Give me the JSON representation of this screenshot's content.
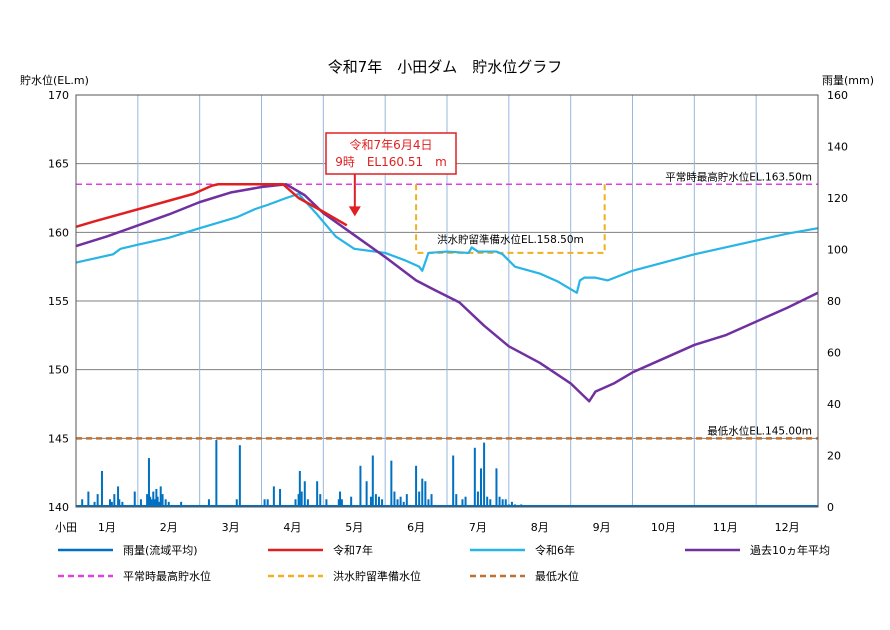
{
  "chart_data": {
    "type": "line",
    "title": "令和7年　小田ダム　貯水位グラフ",
    "y_left_label": "貯水位(EL.m)",
    "y_right_label": "雨量(mm)",
    "ylim_left": [
      140,
      170
    ],
    "ylim_right": [
      0,
      160
    ],
    "y_left_ticks": [
      140,
      145,
      150,
      155,
      160,
      165,
      170
    ],
    "y_right_ticks": [
      0,
      20,
      40,
      60,
      80,
      100,
      120,
      140,
      160
    ],
    "x_prefix": "小田",
    "months": [
      "1月",
      "2月",
      "3月",
      "4月",
      "5月",
      "6月",
      "7月",
      "8月",
      "9月",
      "10月",
      "11月",
      "12月"
    ],
    "xlim": [
      1,
      13
    ],
    "grid": true,
    "legend": [
      {
        "key": "rain",
        "label": "雨量(流域平均)",
        "color": "#0070c0",
        "dash": false
      },
      {
        "key": "r7",
        "label": "令和7年",
        "color": "#e02020",
        "dash": false
      },
      {
        "key": "r6",
        "label": "令和6年",
        "color": "#27b4e6",
        "dash": false
      },
      {
        "key": "avg",
        "label": "過去10ヵ年平均",
        "color": "#7030a0",
        "dash": false
      },
      {
        "key": "normal_max",
        "label": "平常時最高貯水位",
        "color": "#e040e0",
        "dash": true
      },
      {
        "key": "flood",
        "label": "洪水貯留準備水位",
        "color": "#f0b020",
        "dash": true
      },
      {
        "key": "min",
        "label": "最低水位",
        "color": "#c07030",
        "dash": true
      }
    ],
    "reference_lines": [
      {
        "key": "normal_max",
        "label": "平常時最高貯水位EL.163.50m",
        "y": 163.5,
        "color": "#e040e0"
      },
      {
        "key": "flood",
        "label": "洪水貯留準備水位EL.158.50m",
        "y": 158.5,
        "x_start": 6.5,
        "x_end": 9.55,
        "upper": 163.5,
        "color": "#f0b020"
      },
      {
        "key": "min",
        "label": "最低水位EL.145.00m",
        "y": 145.0,
        "color": "#c07030"
      }
    ],
    "series": [
      {
        "key": "r7",
        "name": "令和7年",
        "color": "#e02020",
        "x": [
          1.0,
          1.3,
          1.7,
          2.1,
          2.5,
          2.9,
          3.2,
          3.3,
          3.8,
          4.35,
          4.6,
          5.0,
          5.38
        ],
        "y": [
          160.4,
          160.8,
          161.3,
          161.8,
          162.3,
          162.8,
          163.4,
          163.5,
          163.5,
          163.5,
          162.5,
          161.5,
          160.51
        ]
      },
      {
        "key": "r6",
        "name": "令和6年",
        "color": "#27b4e6",
        "x": [
          1.0,
          1.3,
          1.6,
          1.72,
          2.0,
          2.5,
          3.0,
          3.3,
          3.6,
          3.9,
          4.1,
          4.4,
          4.6,
          4.9,
          5.2,
          5.5,
          6.0,
          6.3,
          6.45,
          6.55,
          6.6,
          6.7,
          7.0,
          7.35,
          7.4,
          7.5,
          7.8,
          7.9,
          8.1,
          8.5,
          8.8,
          9.1,
          9.15,
          9.22,
          9.4,
          9.6,
          10.0,
          10.5,
          11.0,
          11.5,
          12.0,
          12.5,
          13.0
        ],
        "y": [
          157.8,
          158.1,
          158.4,
          158.8,
          159.1,
          159.6,
          160.3,
          160.7,
          161.1,
          161.7,
          162.0,
          162.5,
          162.8,
          161.3,
          159.7,
          158.8,
          158.5,
          158.0,
          157.7,
          157.5,
          157.2,
          158.5,
          158.6,
          158.5,
          158.9,
          158.6,
          158.6,
          158.4,
          157.5,
          157.0,
          156.4,
          155.6,
          156.5,
          156.7,
          156.7,
          156.5,
          157.2,
          157.8,
          158.4,
          158.9,
          159.4,
          159.9,
          160.3
        ]
      },
      {
        "key": "avg",
        "name": "過去10ヵ年平均",
        "color": "#7030a0",
        "x": [
          1.0,
          1.5,
          2.0,
          2.5,
          3.0,
          3.5,
          4.0,
          4.4,
          4.7,
          5.0,
          5.5,
          6.0,
          6.5,
          6.8,
          7.2,
          7.6,
          8.0,
          8.5,
          9.0,
          9.3,
          9.4,
          9.7,
          10.0,
          10.5,
          11.0,
          11.5,
          12.0,
          12.5,
          13.0
        ],
        "y": [
          159.0,
          159.7,
          160.5,
          161.3,
          162.2,
          162.9,
          163.3,
          163.5,
          162.7,
          161.4,
          159.8,
          158.2,
          156.5,
          155.8,
          154.9,
          153.2,
          151.7,
          150.5,
          149.0,
          147.7,
          148.4,
          149.0,
          149.8,
          150.8,
          151.8,
          152.5,
          153.5,
          154.5,
          155.6
        ]
      }
    ],
    "rain": {
      "x": [
        1.1,
        1.2,
        1.3,
        1.35,
        1.42,
        1.55,
        1.58,
        1.62,
        1.68,
        1.7,
        1.75,
        1.95,
        2.05,
        2.15,
        2.18,
        2.2,
        2.22,
        2.25,
        2.27,
        2.3,
        2.32,
        2.35,
        2.37,
        2.4,
        2.45,
        2.5,
        2.7,
        3.15,
        3.27,
        3.6,
        3.65,
        4.05,
        4.1,
        4.2,
        4.3,
        4.55,
        4.6,
        4.62,
        4.65,
        4.7,
        4.75,
        4.9,
        4.95,
        5.05,
        5.25,
        5.27,
        5.3,
        5.45,
        5.6,
        5.7,
        5.77,
        5.8,
        5.85,
        5.9,
        5.95,
        6.1,
        6.15,
        6.2,
        6.25,
        6.3,
        6.35,
        6.5,
        6.55,
        6.6,
        6.65,
        6.7,
        6.75,
        7.1,
        7.15,
        7.25,
        7.3,
        7.45,
        7.5,
        7.55,
        7.6,
        7.65,
        7.7,
        7.8,
        7.85,
        7.9,
        7.95,
        8.0,
        8.05,
        8.1,
        8.2
      ],
      "y": [
        3,
        6,
        2,
        5,
        14,
        3,
        2,
        5,
        8,
        3,
        2,
        6,
        3,
        5,
        19,
        4,
        3,
        6,
        3,
        7,
        4,
        2,
        8,
        5,
        3,
        2,
        2,
        3,
        26,
        3,
        24,
        3,
        3,
        8,
        7,
        3,
        5,
        14,
        6,
        10,
        3,
        10,
        5,
        3,
        3,
        6,
        3,
        4,
        16,
        10,
        4,
        20,
        5,
        4,
        3,
        18,
        6,
        3,
        4,
        2,
        5,
        16,
        6,
        11,
        10,
        3,
        5,
        20,
        5,
        3,
        4,
        23,
        6,
        15,
        25,
        4,
        3,
        15,
        4,
        3,
        3,
        1,
        2,
        1,
        1
      ]
    },
    "annotation": {
      "line1": "令和7年6月4日",
      "line2": "9時　EL160.51　m",
      "x": 5.38,
      "y": 160.51,
      "color": "#e02020"
    }
  }
}
